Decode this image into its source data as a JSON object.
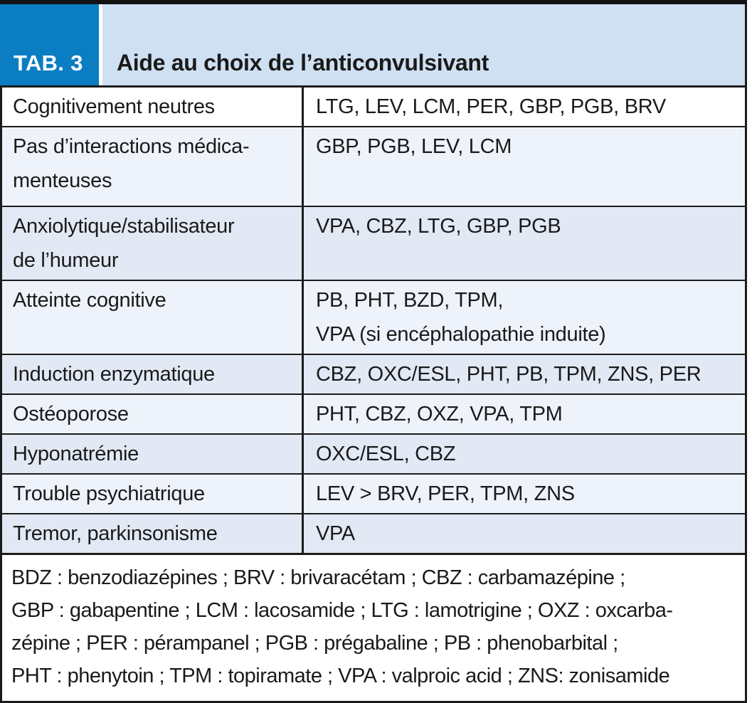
{
  "header": {
    "tab_label": "TAB. 3",
    "title": "Aide au choix de l’anticonvulsivant"
  },
  "table": {
    "rows": [
      {
        "criterion": "Cognitivement neutres",
        "drugs": "LTG, LEV, LCM, PER, GBP, PGB, BRV"
      },
      {
        "criterion": "Pas d’interactions médica-\nmenteuses",
        "drugs": "GBP, PGB, LEV, LCM"
      },
      {
        "criterion": "Anxiolytique/stabilisateur\nde l’humeur",
        "drugs": "VPA, CBZ, LTG, GBP, PGB"
      },
      {
        "criterion": "Atteinte cognitive",
        "drugs": "PB, PHT, BZD, TPM,\nVPA (si encéphalopathie induite)"
      },
      {
        "criterion": "Induction enzymatique",
        "drugs": "CBZ, OXC/ESL, PHT, PB, TPM, ZNS, PER"
      },
      {
        "criterion": "Ostéoporose",
        "drugs": "PHT, CBZ, OXZ, VPA, TPM"
      },
      {
        "criterion": "Hyponatrémie",
        "drugs": "OXC/ESL, CBZ"
      },
      {
        "criterion": "Trouble psychiatrique",
        "drugs": "LEV > BRV, PER, TPM, ZNS"
      },
      {
        "criterion": "Tremor, parkinsonisme",
        "drugs": "VPA"
      }
    ]
  },
  "footnote": {
    "text": "BDZ : benzodiazépines ; BRV : brivaracétam ; CBZ : carbamazépine ;\nGBP : gabapentine ; LCM : lacosamide ; LTG : lamotrigine ; OXZ : oxcarba-\nzépine ; PER : pérampanel ; PGB : prégabaline ; PB : phenobarbital ;\nPHT : phenytoin ; TPM : topiramate ; VPA : valproic acid ; ZNS: zonisamide"
  },
  "colors": {
    "badge_blue": "#0b7dc2",
    "header_light_blue": "#cfe0f2",
    "row_tint_light": "#eef2fb",
    "row_tint_medium": "#e2e9f5",
    "border_dark": "#1b1b1b",
    "top_rule_black": "#121212"
  }
}
